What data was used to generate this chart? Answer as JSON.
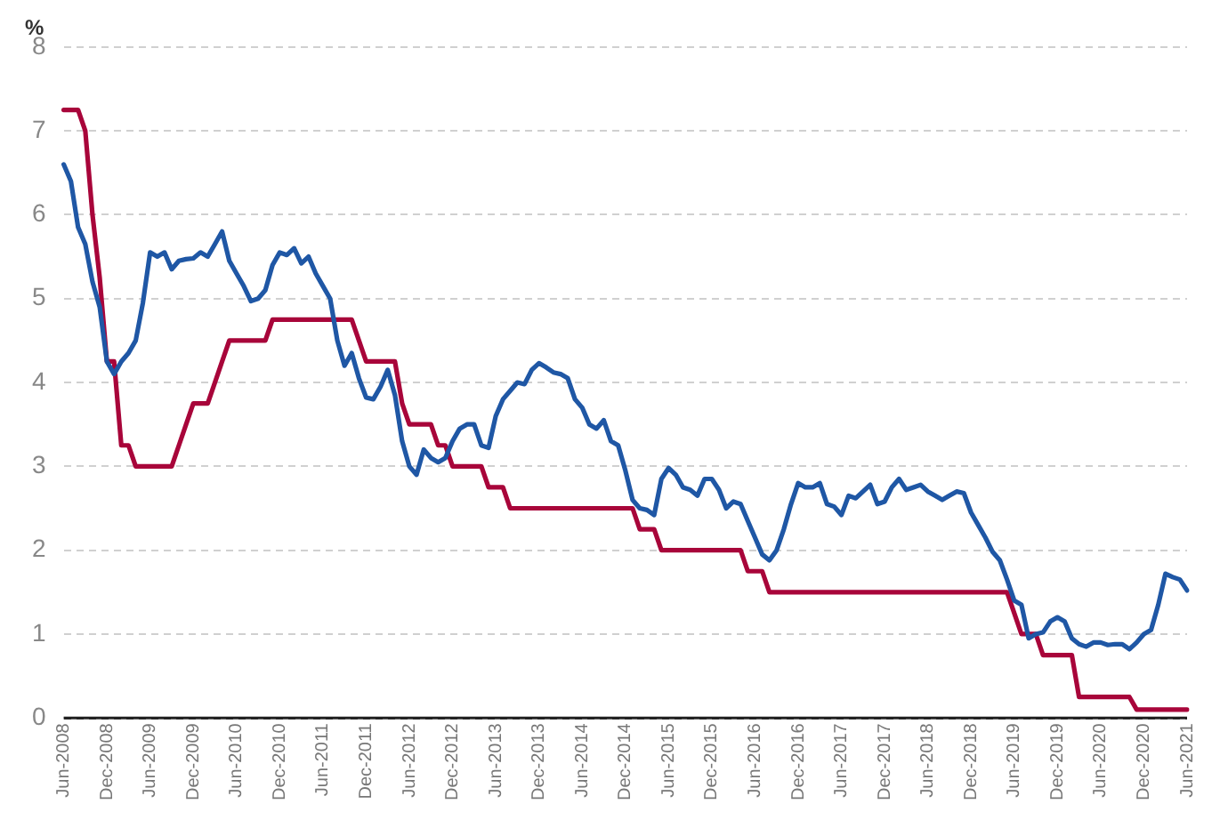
{
  "chart_data": {
    "type": "line",
    "ylabel": "%",
    "categories": [
      "Jun-2008",
      null,
      null,
      null,
      null,
      null,
      "Dec-2008",
      null,
      null,
      null,
      null,
      null,
      "Jun-2009",
      null,
      null,
      null,
      null,
      null,
      "Dec-2009",
      null,
      null,
      null,
      null,
      null,
      "Jun-2010",
      null,
      null,
      null,
      null,
      null,
      "Dec-2010",
      null,
      null,
      null,
      null,
      null,
      "Jun-2011",
      null,
      null,
      null,
      null,
      null,
      "Dec-2011",
      null,
      null,
      null,
      null,
      null,
      "Jun-2012",
      null,
      null,
      null,
      null,
      null,
      "Dec-2012",
      null,
      null,
      null,
      null,
      null,
      "Jun-2013",
      null,
      null,
      null,
      null,
      null,
      "Dec-2013",
      null,
      null,
      null,
      null,
      null,
      "Jun-2014",
      null,
      null,
      null,
      null,
      null,
      "Dec-2014",
      null,
      null,
      null,
      null,
      null,
      "Jun-2015",
      null,
      null,
      null,
      null,
      null,
      "Dec-2015",
      null,
      null,
      null,
      null,
      null,
      "Jun-2016",
      null,
      null,
      null,
      null,
      null,
      "Dec-2016",
      null,
      null,
      null,
      null,
      null,
      "Jun-2017",
      null,
      null,
      null,
      null,
      null,
      "Dec-2017",
      null,
      null,
      null,
      null,
      null,
      "Jun-2018",
      null,
      null,
      null,
      null,
      null,
      "Dec-2018",
      null,
      null,
      null,
      null,
      null,
      "Jun-2019",
      null,
      null,
      null,
      null,
      null,
      "Dec-2019",
      null,
      null,
      null,
      null,
      null,
      "Jun-2020",
      null,
      null,
      null,
      null,
      null,
      "Dec-2020",
      null,
      null,
      null,
      null,
      null,
      "Jun-2021"
    ],
    "series": [
      {
        "color": "#1f57a5",
        "values": [
          6.6,
          6.4,
          5.85,
          5.65,
          5.2,
          4.9,
          4.25,
          4.1,
          4.25,
          4.35,
          4.5,
          4.95,
          5.55,
          5.5,
          5.55,
          5.35,
          5.45,
          5.47,
          5.48,
          5.55,
          5.5,
          5.65,
          5.8,
          5.45,
          5.3,
          5.15,
          4.97,
          5.0,
          5.1,
          5.4,
          5.55,
          5.52,
          5.6,
          5.42,
          5.5,
          5.3,
          5.15,
          5.0,
          4.5,
          4.2,
          4.35,
          4.05,
          3.82,
          3.8,
          3.95,
          4.15,
          3.85,
          3.3,
          3.0,
          2.9,
          3.2,
          3.1,
          3.05,
          3.1,
          3.3,
          3.45,
          3.5,
          3.5,
          3.25,
          3.22,
          3.6,
          3.8,
          3.9,
          4.0,
          3.98,
          4.15,
          4.23,
          4.18,
          4.12,
          4.1,
          4.05,
          3.8,
          3.7,
          3.5,
          3.45,
          3.55,
          3.3,
          3.25,
          2.95,
          2.6,
          2.5,
          2.48,
          2.42,
          2.85,
          2.98,
          2.9,
          2.75,
          2.72,
          2.65,
          2.85,
          2.85,
          2.72,
          2.5,
          2.58,
          2.55,
          2.35,
          2.15,
          1.95,
          1.88,
          2.0,
          2.25,
          2.55,
          2.8,
          2.75,
          2.75,
          2.8,
          2.55,
          2.52,
          2.42,
          2.65,
          2.62,
          2.7,
          2.78,
          2.55,
          2.58,
          2.75,
          2.85,
          2.72,
          2.75,
          2.78,
          2.7,
          2.65,
          2.6,
          2.65,
          2.7,
          2.68,
          2.45,
          2.3,
          2.15,
          1.98,
          1.88,
          1.65,
          1.4,
          1.35,
          0.95,
          1.0,
          1.02,
          1.15,
          1.2,
          1.15,
          0.95,
          0.88,
          0.85,
          0.9,
          0.9,
          0.87,
          0.88,
          0.88,
          0.82,
          0.9,
          1.0,
          1.05,
          1.35,
          1.72,
          1.68,
          1.65,
          1.52
        ]
      },
      {
        "color": "#a8053a",
        "values": [
          7.25,
          7.25,
          7.25,
          7.0,
          6.0,
          5.25,
          4.25,
          4.25,
          3.25,
          3.25,
          3.0,
          3.0,
          3.0,
          3.0,
          3.0,
          3.0,
          3.25,
          3.5,
          3.75,
          3.75,
          3.75,
          4.0,
          4.25,
          4.5,
          4.5,
          4.5,
          4.5,
          4.5,
          4.5,
          4.75,
          4.75,
          4.75,
          4.75,
          4.75,
          4.75,
          4.75,
          4.75,
          4.75,
          4.75,
          4.75,
          4.75,
          4.5,
          4.25,
          4.25,
          4.25,
          4.25,
          4.25,
          3.75,
          3.5,
          3.5,
          3.5,
          3.5,
          3.25,
          3.25,
          3.0,
          3.0,
          3.0,
          3.0,
          3.0,
          2.75,
          2.75,
          2.75,
          2.5,
          2.5,
          2.5,
          2.5,
          2.5,
          2.5,
          2.5,
          2.5,
          2.5,
          2.5,
          2.5,
          2.5,
          2.5,
          2.5,
          2.5,
          2.5,
          2.5,
          2.5,
          2.25,
          2.25,
          2.25,
          2.0,
          2.0,
          2.0,
          2.0,
          2.0,
          2.0,
          2.0,
          2.0,
          2.0,
          2.0,
          2.0,
          2.0,
          1.75,
          1.75,
          1.75,
          1.5,
          1.5,
          1.5,
          1.5,
          1.5,
          1.5,
          1.5,
          1.5,
          1.5,
          1.5,
          1.5,
          1.5,
          1.5,
          1.5,
          1.5,
          1.5,
          1.5,
          1.5,
          1.5,
          1.5,
          1.5,
          1.5,
          1.5,
          1.5,
          1.5,
          1.5,
          1.5,
          1.5,
          1.5,
          1.5,
          1.5,
          1.5,
          1.5,
          1.5,
          1.25,
          1.0,
          1.0,
          1.0,
          0.75,
          0.75,
          0.75,
          0.75,
          0.75,
          0.25,
          0.25,
          0.25,
          0.25,
          0.25,
          0.25,
          0.25,
          0.25,
          0.1,
          0.1,
          0.1,
          0.1,
          0.1,
          0.1,
          0.1,
          0.1
        ]
      }
    ],
    "ylim": [
      0,
      8
    ],
    "yticks": [
      0,
      1,
      2,
      3,
      4,
      5,
      6,
      7,
      8
    ],
    "grid": "y",
    "legend": false,
    "marker": "none",
    "line_style": "solid"
  }
}
